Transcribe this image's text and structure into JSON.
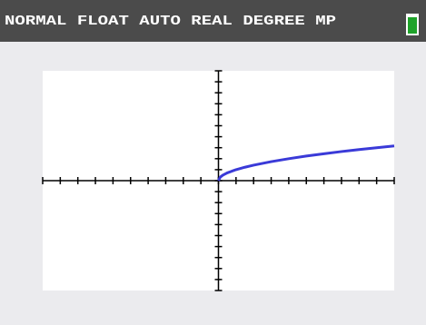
{
  "status_bar": {
    "text": "NORMAL FLOAT AUTO REAL DEGREE MP"
  },
  "chart_data": {
    "type": "line",
    "x": [
      0,
      0.1,
      0.25,
      0.5,
      1,
      1.5,
      2,
      3,
      4,
      5,
      6,
      7,
      8,
      9,
      10
    ],
    "series": [
      {
        "color": "#3a3ad8",
        "values": [
          0,
          0.32,
          0.5,
          0.71,
          1,
          1.22,
          1.41,
          1.73,
          2,
          2.24,
          2.45,
          2.65,
          2.83,
          3,
          3.16
        ]
      }
    ],
    "xlim": [
      -10,
      10
    ],
    "ylim": [
      -10,
      10
    ],
    "xticks": [
      -10,
      -9,
      -8,
      -7,
      -6,
      -5,
      -4,
      -3,
      -2,
      -1,
      0,
      1,
      2,
      3,
      4,
      5,
      6,
      7,
      8,
      9,
      10
    ],
    "yticks": [
      -10,
      -9,
      -8,
      -7,
      -6,
      -5,
      -4,
      -3,
      -2,
      -1,
      0,
      1,
      2,
      3,
      4,
      5,
      6,
      7,
      8,
      9,
      10
    ]
  }
}
